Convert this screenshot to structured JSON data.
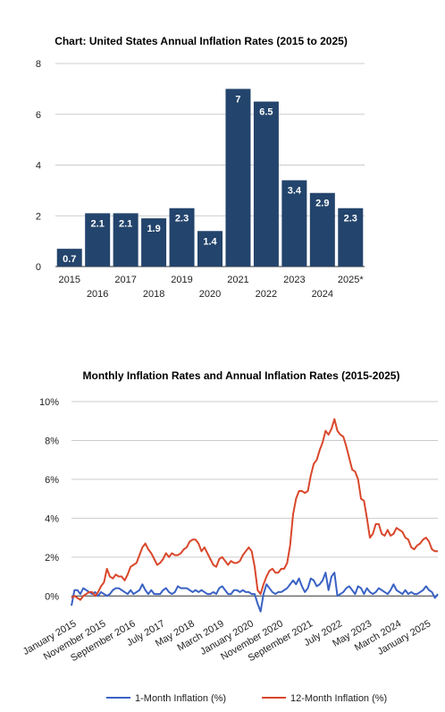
{
  "chart_data": [
    {
      "type": "bar",
      "title": "Chart: United States Annual Inflation Rates (2015 to 2025)",
      "categories": [
        "2015",
        "2016",
        "2017",
        "2018",
        "2019",
        "2020",
        "2021",
        "2022",
        "2023",
        "2024",
        "2025*"
      ],
      "values": [
        0.7,
        2.1,
        2.1,
        1.9,
        2.3,
        1.4,
        7,
        6.5,
        3.4,
        2.9,
        2.3
      ],
      "data_labels": [
        "0.7",
        "2.1",
        "2.1",
        "1.9",
        "2.3",
        "1.4",
        "7",
        "6.5",
        "3.4",
        "2.9",
        "2.3"
      ],
      "ylim": [
        0,
        8
      ],
      "yticks": [
        "0",
        "2",
        "4",
        "6",
        "8"
      ],
      "ytick_values": [
        0,
        2,
        4,
        6,
        8
      ],
      "bar_color": "#23446c",
      "grid": true
    },
    {
      "type": "line",
      "title": "Monthly Inflation Rates and Annual Inflation Rates (2015-2025)",
      "ylim": [
        -1,
        10
      ],
      "yticks": [
        "0%",
        "2%",
        "4%",
        "6%",
        "8%",
        "10%"
      ],
      "ytick_values": [
        0,
        2,
        4,
        6,
        8,
        10
      ],
      "xticks": [
        "January 2015",
        "November 2015",
        "September 2016",
        "July 2017",
        "May 2018",
        "March 2019",
        "January 2020",
        "November 2020",
        "September 2021",
        "July 2022",
        "May 2023",
        "March 2024",
        "January 2025"
      ],
      "xtick_months": [
        0,
        10,
        20,
        30,
        40,
        50,
        60,
        70,
        80,
        90,
        100,
        110,
        120
      ],
      "x_start": "January 2015",
      "legend": "bottom",
      "grid": true,
      "series": [
        {
          "name": "1-Month Inflation (%)",
          "color": "#3a62c4",
          "values": [
            -0.5,
            0.3,
            0.3,
            0.1,
            0.4,
            0.3,
            0.2,
            0.1,
            0.2,
            0.0,
            0.2,
            0.1,
            0.0,
            0.1,
            0.3,
            0.4,
            0.4,
            0.3,
            0.2,
            0.1,
            0.3,
            0.1,
            0.2,
            0.3,
            0.6,
            0.3,
            0.1,
            0.3,
            0.1,
            0.1,
            0.1,
            0.3,
            0.4,
            0.2,
            0.1,
            0.2,
            0.5,
            0.4,
            0.4,
            0.4,
            0.3,
            0.2,
            0.3,
            0.2,
            0.3,
            0.2,
            0.1,
            0.1,
            0.2,
            0.1,
            0.4,
            0.5,
            0.3,
            0.1,
            0.1,
            0.3,
            0.3,
            0.2,
            0.3,
            0.2,
            0.2,
            0.1,
            0.1,
            -0.4,
            -0.8,
            0.1,
            0.6,
            0.4,
            0.2,
            0.1,
            0.2,
            0.2,
            0.3,
            0.4,
            0.6,
            0.8,
            0.6,
            0.9,
            0.5,
            0.2,
            0.4,
            0.9,
            0.8,
            0.5,
            0.6,
            0.8,
            1.2,
            0.3,
            1.0,
            1.2,
            0.0,
            0.1,
            0.2,
            0.4,
            0.5,
            0.3,
            0.1,
            0.5,
            0.4,
            0.1,
            0.4,
            0.2,
            0.1,
            0.2,
            0.4,
            0.3,
            0.2,
            0.1,
            0.3,
            0.6,
            0.3,
            0.2,
            0.1,
            0.3,
            0.1,
            0.2,
            0.1,
            0.1,
            0.2,
            0.3,
            0.5,
            0.3,
            0.2,
            -0.1,
            0.1
          ]
        },
        {
          "name": "12-Month Inflation (%)",
          "color": "#d9472b",
          "values": [
            -0.1,
            0.0,
            -0.1,
            -0.2,
            0.0,
            0.1,
            0.2,
            0.2,
            0.0,
            0.2,
            0.5,
            0.7,
            1.4,
            1.0,
            0.9,
            1.1,
            1.0,
            1.0,
            0.8,
            1.1,
            1.5,
            1.6,
            1.7,
            2.1,
            2.5,
            2.7,
            2.4,
            2.2,
            1.9,
            1.6,
            1.7,
            1.9,
            2.2,
            2.0,
            2.2,
            2.1,
            2.1,
            2.2,
            2.4,
            2.5,
            2.8,
            2.9,
            2.9,
            2.7,
            2.3,
            2.5,
            2.2,
            1.9,
            1.6,
            1.5,
            1.9,
            2.0,
            1.8,
            1.6,
            1.8,
            1.7,
            1.7,
            1.8,
            2.1,
            2.3,
            2.5,
            2.3,
            1.5,
            0.3,
            0.1,
            0.6,
            1.0,
            1.3,
            1.4,
            1.2,
            1.2,
            1.4,
            1.4,
            1.7,
            2.6,
            4.2,
            5.0,
            5.4,
            5.4,
            5.3,
            5.4,
            6.2,
            6.8,
            7.0,
            7.5,
            7.9,
            8.5,
            8.3,
            8.6,
            9.1,
            8.5,
            8.3,
            8.2,
            7.7,
            7.1,
            6.5,
            6.4,
            6.0,
            5.0,
            4.9,
            4.0,
            3.0,
            3.2,
            3.7,
            3.7,
            3.2,
            3.1,
            3.4,
            3.1,
            3.2,
            3.5,
            3.4,
            3.3,
            3.0,
            2.9,
            2.5,
            2.4,
            2.6,
            2.7,
            2.9,
            3.0,
            2.8,
            2.4,
            2.3,
            2.3
          ]
        }
      ]
    }
  ]
}
